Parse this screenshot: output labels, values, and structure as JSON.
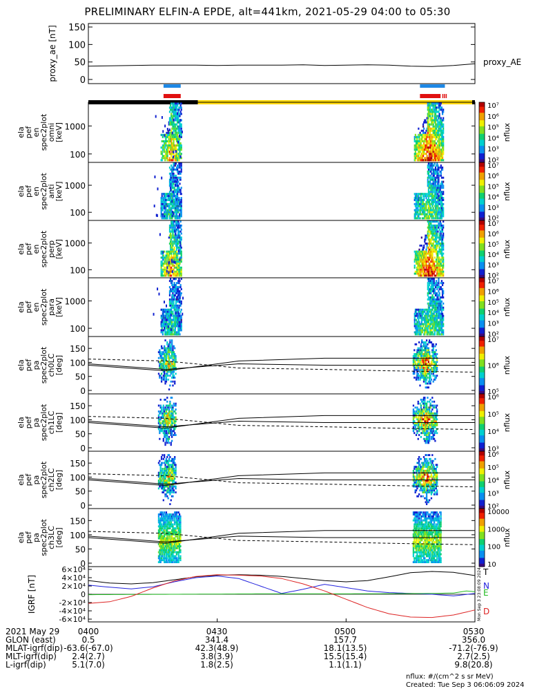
{
  "title": "PRELIMINARY ELFIN-A EPDE, alt=441km, 2021-05-29 04:00 to 05:30",
  "time_range": [
    "04:00",
    "05:30"
  ],
  "chart_data": [
    {
      "type": "line",
      "panel": "proxy_ae",
      "ylabel": "proxy_ae [nT]",
      "ylim": [
        0,
        160
      ],
      "yticks": [
        "0",
        "50",
        "100",
        "150"
      ],
      "series": [
        {
          "name": "proxy_AE",
          "color": "#000000",
          "x": [
            0,
            5,
            10,
            15,
            20,
            25,
            30,
            35,
            40,
            45,
            50,
            55,
            60,
            65,
            70,
            75,
            80,
            85,
            90
          ],
          "y": [
            38,
            39,
            40,
            41,
            41,
            41,
            40,
            41,
            41,
            41,
            42,
            40,
            41,
            42,
            41,
            38,
            37,
            40,
            45
          ]
        }
      ]
    },
    {
      "type": "heatmap",
      "panel": "en_omni",
      "ylabel": [
        "ela",
        "pef",
        "en",
        "spec2plot",
        "omni",
        "[keV]"
      ],
      "yscale": "log",
      "yticks": [
        "100",
        "1000"
      ],
      "colorbar": {
        "label": "nflux",
        "ticks": [
          "10²",
          "10³",
          "10⁴",
          "10⁵",
          "10⁶",
          "10⁷"
        ]
      }
    },
    {
      "type": "heatmap",
      "panel": "en_anti",
      "ylabel": [
        "ela",
        "pef",
        "en",
        "spec2plot",
        "anti",
        "[keV]"
      ],
      "yscale": "log",
      "yticks": [
        "100",
        "1000"
      ],
      "colorbar": {
        "label": "nflux",
        "ticks": [
          "10²",
          "10³",
          "10⁴",
          "10⁵",
          "10⁶",
          "10⁷"
        ]
      }
    },
    {
      "type": "heatmap",
      "panel": "en_perp",
      "ylabel": [
        "ela",
        "pef",
        "en",
        "spec2plot",
        "perp",
        "[keV]"
      ],
      "yscale": "log",
      "yticks": [
        "100",
        "1000"
      ],
      "colorbar": {
        "label": "nflux",
        "ticks": [
          "10²",
          "10³",
          "10⁴",
          "10⁵",
          "10⁶",
          "10⁷"
        ]
      }
    },
    {
      "type": "heatmap",
      "panel": "en_para",
      "ylabel": [
        "ela",
        "pef",
        "en",
        "spec2plot",
        "para",
        "[keV]"
      ],
      "yscale": "log",
      "yticks": [
        "100",
        "1000"
      ],
      "colorbar": {
        "label": "nflux",
        "ticks": [
          "10²",
          "10³",
          "10⁴",
          "10⁵",
          "10⁶",
          "10⁷"
        ]
      }
    },
    {
      "type": "heatmap",
      "panel": "pa_ch0LC",
      "ylabel": [
        "ela",
        "pef",
        "pa",
        "spec2plot",
        "ch0LC",
        "[deg]"
      ],
      "ylim": [
        0,
        180
      ],
      "yticks": [
        "0",
        "50",
        "100",
        "150"
      ],
      "colorbar": {
        "label": "nflux",
        "ticks": [
          "10⁵",
          "10⁶",
          "10⁷"
        ]
      }
    },
    {
      "type": "heatmap",
      "panel": "pa_ch1LC",
      "ylabel": [
        "ela",
        "pef",
        "pa",
        "spec2plot",
        "ch1LC",
        "[deg]"
      ],
      "ylim": [
        0,
        180
      ],
      "yticks": [
        "0",
        "50",
        "100",
        "150"
      ],
      "colorbar": {
        "label": "nflux",
        "ticks": [
          "10³",
          "10⁴",
          "10⁵",
          "10⁶"
        ]
      }
    },
    {
      "type": "heatmap",
      "panel": "pa_ch2LC",
      "ylabel": [
        "ela",
        "pef",
        "pa",
        "spec2plot",
        "ch2LC",
        "[deg]"
      ],
      "ylim": [
        0,
        180
      ],
      "yticks": [
        "0",
        "50",
        "100",
        "150"
      ],
      "colorbar": {
        "label": "nflux",
        "ticks": [
          "10²",
          "10³",
          "10⁴",
          "10⁵",
          "10⁶"
        ]
      }
    },
    {
      "type": "heatmap",
      "panel": "pa_ch3LC",
      "ylabel": [
        "ela",
        "pef",
        "pa",
        "spec2plot",
        "ch3LC",
        "[deg]"
      ],
      "ylim": [
        0,
        180
      ],
      "yticks": [
        "0",
        "50",
        "100",
        "150"
      ],
      "colorbar": {
        "label": "nflux",
        "ticks": [
          "10",
          "100",
          "1000",
          "10000"
        ]
      }
    },
    {
      "type": "line",
      "panel": "igrf",
      "ylabel": "IGRF [nT]",
      "ylim": [
        -60000,
        60000
      ],
      "yticks": [
        "-6×10⁴",
        "-4×10⁴",
        "-2×10⁴",
        "0",
        "2×10⁴",
        "4×10⁴",
        "6×10⁴"
      ],
      "series": [
        {
          "name": "T",
          "color": "#000000",
          "x": [
            0,
            5,
            10,
            15,
            20,
            25,
            30,
            35,
            40,
            45,
            50,
            55,
            60,
            65,
            70,
            75,
            80,
            85,
            90
          ],
          "y": [
            33000,
            27000,
            25000,
            28000,
            35000,
            42000,
            46000,
            47000,
            46000,
            43000,
            38000,
            33000,
            30000,
            33000,
            42000,
            52000,
            55000,
            53000,
            45000
          ]
        },
        {
          "name": "N",
          "color": "#2222dd",
          "x": [
            0,
            5,
            10,
            15,
            20,
            25,
            30,
            35,
            40,
            45,
            50,
            55,
            60,
            65,
            70,
            75,
            80,
            85,
            90
          ],
          "y": [
            22000,
            17000,
            13000,
            18000,
            30000,
            40000,
            44000,
            38000,
            20000,
            2000,
            12000,
            24000,
            16000,
            8000,
            4000,
            2000,
            0,
            -4000,
            2000
          ]
        },
        {
          "name": "E",
          "color": "#22bb22",
          "x": [
            0,
            10,
            20,
            30,
            40,
            50,
            60,
            70,
            80,
            85,
            88,
            90
          ],
          "y": [
            -1000,
            -500,
            0,
            500,
            1000,
            1000,
            1000,
            1500,
            2000,
            3000,
            8000,
            6000
          ]
        },
        {
          "name": "D",
          "color": "#dd2222",
          "x": [
            0,
            5,
            10,
            15,
            20,
            25,
            30,
            35,
            40,
            45,
            50,
            55,
            60,
            65,
            70,
            75,
            80,
            85,
            90
          ],
          "y": [
            -22000,
            -18000,
            -5000,
            15000,
            32000,
            43000,
            47000,
            46000,
            44000,
            38000,
            25000,
            8000,
            -12000,
            -32000,
            -47000,
            -55000,
            -56000,
            -50000,
            -38000
          ]
        }
      ]
    }
  ],
  "colors": {
    "orbit_black": "#000000",
    "orbit_yellow": "#ffd700",
    "science_blue": "#1e88e5",
    "science_red": "#e01010"
  },
  "ephemeris": {
    "rows": [
      {
        "label": "2021 May 29",
        "values": [
          "0400",
          "0430",
          "0500",
          "0530"
        ]
      },
      {
        "label": "GLON (east)",
        "values": [
          "0.5",
          "341.4",
          "157.7",
          "356.0"
        ]
      },
      {
        "label": "MLAT-igrf(dip)",
        "values": [
          "-63.6(-67.0)",
          "42.3(48.9)",
          "18.1(13.5)",
          "-71.2(-76.9)"
        ]
      },
      {
        "label": "MLT-igrf(dip)",
        "values": [
          "2.4(2.7)",
          "3.8(3.9)",
          "15.5(15.4)",
          "2.7(2.5)"
        ]
      },
      {
        "label": "L-igrf(dip)",
        "values": [
          "5.1(7.0)",
          "1.8(2.5)",
          "1.1(1.1)",
          "9.8(20.8)"
        ]
      }
    ]
  },
  "footer": {
    "units_note": "nflux: #/(cm^2 s sr MeV)",
    "created": "Created: Tue Sep  3 06:06:09 2024",
    "side_stamp": "Mon Sep  3 23:08:09 2024"
  }
}
